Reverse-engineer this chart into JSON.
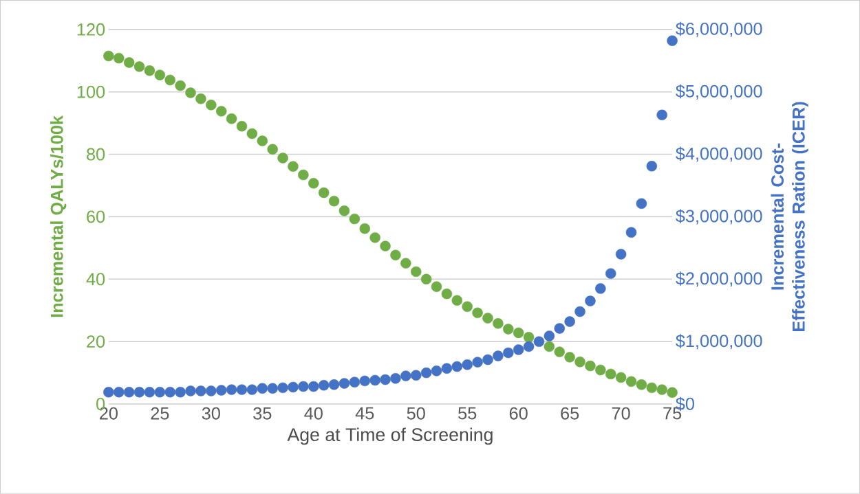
{
  "chart_data": {
    "type": "scatter",
    "xlabel": "Age at Time of Screening",
    "ylabel": "Incremental QALYs/100k",
    "y2label": "Incremental Cost-Effectiveness Ration (ICER)",
    "x": [
      20,
      21,
      22,
      23,
      24,
      25,
      26,
      27,
      28,
      29,
      30,
      31,
      32,
      33,
      34,
      35,
      36,
      37,
      38,
      39,
      40,
      41,
      42,
      43,
      44,
      45,
      46,
      47,
      48,
      49,
      50,
      51,
      52,
      53,
      54,
      55,
      56,
      57,
      58,
      59,
      60,
      61,
      62,
      63,
      64,
      65,
      66,
      67,
      68,
      69,
      70,
      71,
      72,
      73,
      74,
      75
    ],
    "series": [
      {
        "color": "#70ad47",
        "values": [
          111.5,
          110.8,
          109.4,
          108.1,
          106.8,
          105.4,
          103.8,
          102.0,
          99.7,
          97.8,
          95.8,
          93.8,
          91.4,
          89.0,
          86.6,
          84.3,
          81.6,
          78.8,
          76.1,
          73.4,
          70.7,
          67.7,
          65.0,
          61.9,
          59.3,
          56.2,
          53.3,
          50.6,
          47.7,
          45.1,
          42.4,
          40.0,
          37.6,
          35.3,
          33.2,
          31.2,
          29.2,
          27.5,
          25.8,
          24.0,
          22.8,
          21.4,
          null,
          18.4,
          16.7,
          15.0,
          13.5,
          12.2,
          10.9,
          9.6,
          8.5,
          7.2,
          6.2,
          5.2,
          4.6,
          3.7
        ]
      },
      {
        "color": "#4472c4",
        "axis": "y2",
        "values": [
          190000,
          190000,
          190000,
          190000,
          190000,
          190000,
          190000,
          190000,
          210000,
          210000,
          210000,
          220000,
          230000,
          230000,
          230000,
          250000,
          250000,
          260000,
          270000,
          280000,
          280000,
          300000,
          310000,
          330000,
          350000,
          370000,
          380000,
          390000,
          410000,
          450000,
          460000,
          500000,
          530000,
          570000,
          600000,
          630000,
          670000,
          710000,
          770000,
          820000,
          870000,
          920000,
          1000000,
          1090000,
          1210000,
          1320000,
          1480000,
          1650000,
          1850000,
          2090000,
          2400000,
          2750000,
          3210000,
          3810000,
          4630000,
          5820000
        ]
      }
    ],
    "xlim": [
      20,
      75
    ],
    "xticks": [
      20,
      25,
      30,
      35,
      40,
      45,
      50,
      55,
      60,
      65,
      70,
      75
    ],
    "ylim": [
      0,
      120
    ],
    "yticks": [
      0,
      20,
      40,
      60,
      80,
      100,
      120
    ],
    "y2lim": [
      0,
      6000000
    ],
    "y2ticks": [
      {
        "value": 0,
        "label": "$0"
      },
      {
        "value": 1000000,
        "label": "$1,000,000"
      },
      {
        "value": 2000000,
        "label": "$2,000,000"
      },
      {
        "value": 3000000,
        "label": "$3,000,000"
      },
      {
        "value": 4000000,
        "label": "$4,000,000"
      },
      {
        "value": 5000000,
        "label": "$5,000,000"
      },
      {
        "value": 6000000,
        "label": "$6,000,000"
      }
    ],
    "grid": "y",
    "marker": "circle"
  }
}
